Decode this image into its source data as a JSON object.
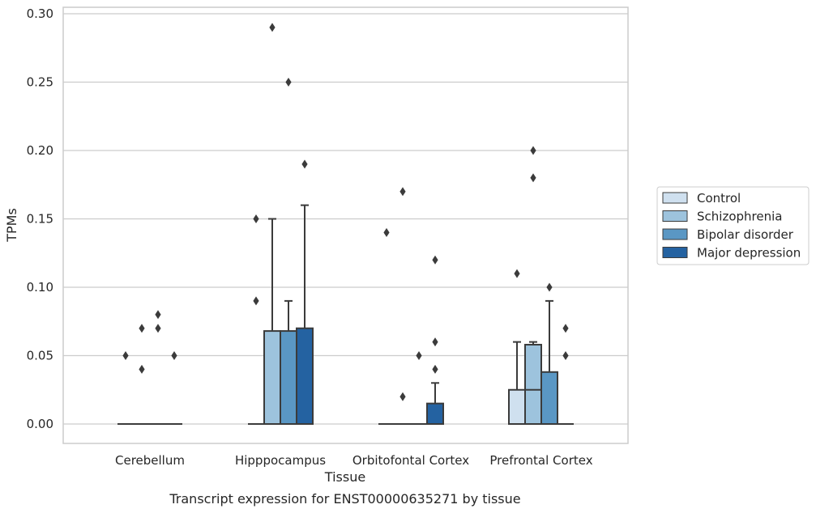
{
  "chart_data": {
    "type": "box",
    "title": "Transcript expression for ENST00000635271 by tissue",
    "xlabel": "Tissue",
    "ylabel": "TPMs",
    "categories": [
      "Cerebellum",
      "Hipppocampus",
      "Orbitofontal Cortex",
      "Prefrontal Cortex"
    ],
    "yticks": [
      "0.00",
      "0.05",
      "0.10",
      "0.15",
      "0.20",
      "0.25",
      "0.30"
    ],
    "ylim": [
      -0.014,
      0.305
    ],
    "grid": true,
    "legend_position": "right",
    "series": [
      {
        "name": "Control",
        "color": "#cfe0ef",
        "boxes": [
          {
            "min": 0,
            "q1": 0,
            "median": 0,
            "q3": 0,
            "max": 0,
            "outliers": [
              0.05
            ]
          },
          {
            "min": 0,
            "q1": 0,
            "median": 0,
            "q3": 0,
            "max": 0,
            "outliers": [
              0.09,
              0.15
            ]
          },
          {
            "min": 0,
            "q1": 0,
            "median": 0,
            "q3": 0,
            "max": 0,
            "outliers": [
              0.14
            ]
          },
          {
            "min": 0,
            "q1": 0,
            "median": 0,
            "q3": 0.025,
            "max": 0.06,
            "outliers": [
              0.11
            ]
          }
        ]
      },
      {
        "name": "Schizophrenia",
        "color": "#9dc3dd",
        "boxes": [
          {
            "min": 0,
            "q1": 0,
            "median": 0,
            "q3": 0,
            "max": 0,
            "outliers": [
              0.04,
              0.07
            ]
          },
          {
            "min": 0,
            "q1": 0,
            "median": 0,
            "q3": 0.068,
            "max": 0.15,
            "outliers": [
              0.29
            ]
          },
          {
            "min": 0,
            "q1": 0,
            "median": 0,
            "q3": 0,
            "max": 0,
            "outliers": [
              0.02,
              0.17
            ]
          },
          {
            "min": 0,
            "q1": 0,
            "median": 0.025,
            "q3": 0.058,
            "max": 0.06,
            "outliers": [
              0.18,
              0.2
            ]
          }
        ]
      },
      {
        "name": "Bipolar disorder",
        "color": "#5a97c4",
        "boxes": [
          {
            "min": 0,
            "q1": 0,
            "median": 0,
            "q3": 0,
            "max": 0,
            "outliers": [
              0.07,
              0.08
            ]
          },
          {
            "min": 0,
            "q1": 0,
            "median": 0,
            "q3": 0.068,
            "max": 0.09,
            "outliers": [
              0.25
            ]
          },
          {
            "min": 0,
            "q1": 0,
            "median": 0,
            "q3": 0,
            "max": 0,
            "outliers": [
              0.05
            ]
          },
          {
            "min": 0,
            "q1": 0,
            "median": 0,
            "q3": 0.038,
            "max": 0.09,
            "outliers": [
              0.1
            ]
          }
        ]
      },
      {
        "name": "Major depression",
        "color": "#2462a1",
        "boxes": [
          {
            "min": 0,
            "q1": 0,
            "median": 0,
            "q3": 0,
            "max": 0,
            "outliers": [
              0.05
            ]
          },
          {
            "min": 0,
            "q1": 0,
            "median": 0,
            "q3": 0.07,
            "max": 0.16,
            "outliers": [
              0.19
            ]
          },
          {
            "min": 0,
            "q1": 0,
            "median": 0,
            "q3": 0.015,
            "max": 0.03,
            "outliers": [
              0.04,
              0.06,
              0.12
            ]
          },
          {
            "min": 0,
            "q1": 0,
            "median": 0,
            "q3": 0,
            "max": 0,
            "outliers": [
              0.05,
              0.07
            ]
          }
        ]
      }
    ]
  }
}
